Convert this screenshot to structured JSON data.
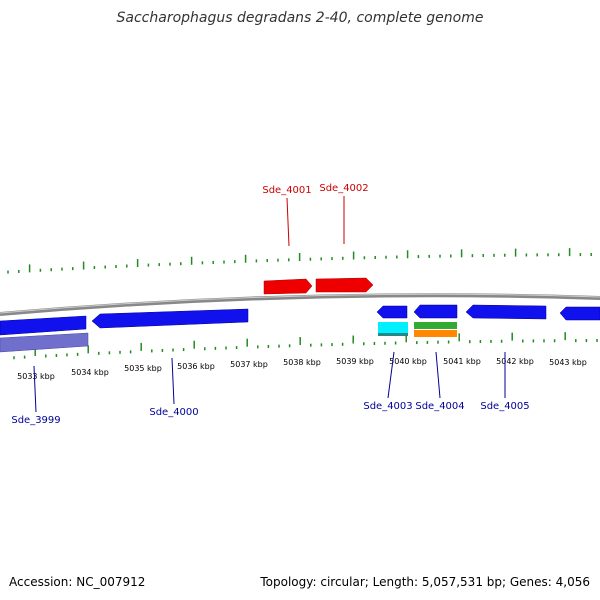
{
  "header": {
    "title": "Saccharophagus degradans 2-40, complete genome"
  },
  "footer": {
    "accession": "Accession: NC_007912",
    "stats": "Topology: circular; Length: 5,057,531 bp; Genes: 4,056"
  },
  "colors": {
    "backbone": "#808080",
    "forward_gene": "#ff0000",
    "reverse_gene": "#0000ff",
    "rna_cyan": "#00ffff",
    "rna_green": "#33aa33",
    "rna_orange": "#ff8800",
    "pseudo_gene": "#7777cc",
    "tick": "#228b22",
    "forward_label": "#cc0000",
    "reverse_label": "#000099"
  },
  "scale": {
    "ticks": [
      "5033 kbp",
      "5034 kbp",
      "5035 kbp",
      "5036 kbp",
      "5037 kbp",
      "5038 kbp",
      "5039 kbp",
      "5040 kbp",
      "5041 kbp",
      "5042 kbp",
      "5043 kbp"
    ]
  },
  "genes": {
    "forward": [
      {
        "label": "Sde_4001"
      },
      {
        "label": "Sde_4002"
      }
    ],
    "reverse": [
      {
        "label": "Sde_3999"
      },
      {
        "label": "Sde_4000"
      },
      {
        "label": "Sde_4003"
      },
      {
        "label": "Sde_4004"
      },
      {
        "label": "Sde_4005"
      }
    ]
  }
}
